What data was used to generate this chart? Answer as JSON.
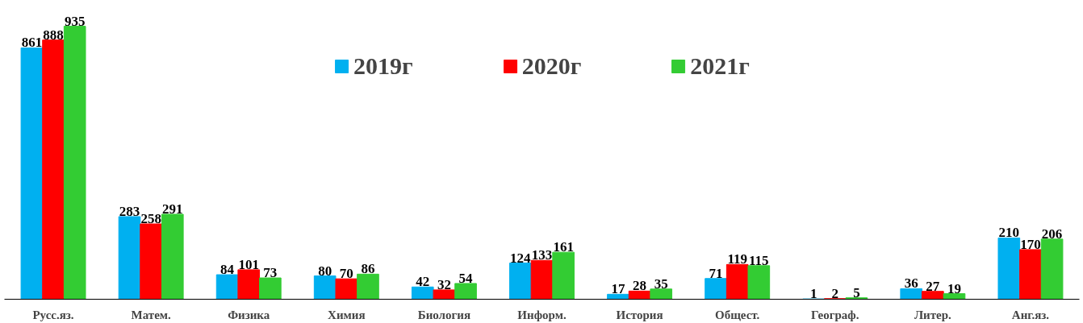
{
  "chart_data": {
    "type": "bar",
    "categories": [
      "Русс.яз.",
      "Матем.",
      "Физика",
      "Химия",
      "Биология",
      "Информ.",
      "История",
      "Общест.",
      "Географ.",
      "Литер.",
      "Анг.яз."
    ],
    "series": [
      {
        "name": "2019г",
        "color": "#00b0f0",
        "values": [
          861,
          283,
          84,
          80,
          42,
          124,
          17,
          71,
          1,
          36,
          210
        ]
      },
      {
        "name": "2020г",
        "color": "#ff0000",
        "values": [
          888,
          258,
          101,
          70,
          32,
          133,
          28,
          119,
          2,
          27,
          170
        ]
      },
      {
        "name": "2021г",
        "color": "#33cc33",
        "values": [
          935,
          291,
          73,
          86,
          54,
          161,
          35,
          115,
          5,
          19,
          206
        ]
      }
    ],
    "data_labels": true,
    "legend": "top",
    "grid": false
  }
}
